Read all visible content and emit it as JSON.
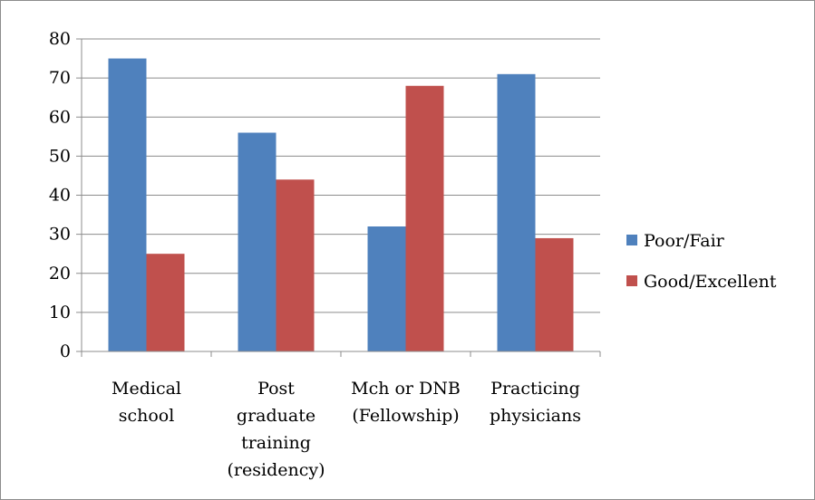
{
  "chart_data": {
    "type": "bar",
    "categories": [
      [
        "Medical",
        "school"
      ],
      [
        "Post",
        "graduate",
        "training",
        "(residency)"
      ],
      [
        "Mch or DNB",
        "(Fellowship)"
      ],
      [
        "Practicing",
        "physicians"
      ]
    ],
    "series": [
      {
        "name": "Poor/Fair",
        "color": "#4F81BD",
        "values": [
          75,
          56,
          32,
          71
        ]
      },
      {
        "name": "Good/Excellent",
        "color": "#C0504D",
        "values": [
          25,
          44,
          68,
          29
        ]
      }
    ],
    "y_ticks": [
      "0",
      "10",
      "20",
      "30",
      "40",
      "50",
      "60",
      "70",
      "80"
    ],
    "ylim": [
      0,
      80
    ],
    "grid": true,
    "legend_position": "right"
  }
}
